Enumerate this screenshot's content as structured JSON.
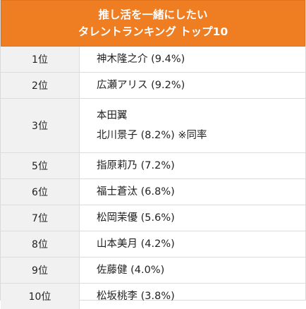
{
  "title": {
    "line1": "推し活を一緒にしたい",
    "line2": "タレントランキング トップ10"
  },
  "rows": [
    {
      "rank": "1位",
      "names": [
        "神木隆之介 (9.4%)"
      ]
    },
    {
      "rank": "2位",
      "names": [
        "広瀬アリス (9.2%)"
      ]
    },
    {
      "rank": "3位",
      "names": [
        "本田翼",
        "北川景子 (8.2%) ※同率"
      ]
    },
    {
      "rank": "5位",
      "names": [
        "指原莉乃 (7.2%)"
      ]
    },
    {
      "rank": "6位",
      "names": [
        "福士蒼汰 (6.8%)"
      ]
    },
    {
      "rank": "7位",
      "names": [
        "松岡茉優 (5.6%)"
      ]
    },
    {
      "rank": "8位",
      "names": [
        "山本美月 (4.2%)"
      ]
    },
    {
      "rank": "9位",
      "names": [
        "佐藤健 (4.0%)"
      ]
    },
    {
      "rank": "10位",
      "names": [
        "松坂桃李 (3.8%)"
      ]
    }
  ],
  "colors": {
    "header_bg": "#ef7d22",
    "rank_bg": "#f1f1f1",
    "border": "#dcdcdc"
  }
}
